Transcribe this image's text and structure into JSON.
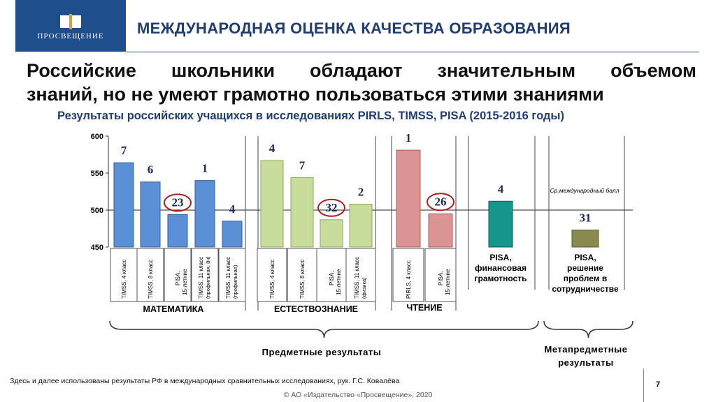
{
  "header": {
    "logo_text": "ПРОСВЕЩЕНИЕ",
    "title": "МЕЖДУНАРОДНАЯ ОЦЕНКА КАЧЕСТВА ОБРАЗОВАНИЯ"
  },
  "headline": {
    "line1_words": [
      "Российские",
      "школьники",
      "обладают",
      "значительным",
      "объемом"
    ],
    "line2": "знаний, но не умеют грамотно пользоваться этими знаниями"
  },
  "subtitle": "Результаты российских учащихся в исследованиях PIRLS, TIMSS, PISA (2015-2016 годы)",
  "chart_data": {
    "type": "bar",
    "ylim": [
      450,
      600
    ],
    "yticks": [
      450,
      500,
      550,
      600
    ],
    "reference_line": {
      "value": 500,
      "label": "Ср.международный балл"
    },
    "groups": [
      {
        "label": "МАТЕМАТИКА",
        "color": "#5b8fd6",
        "stroke": "#2f5f9e",
        "bars": [
          {
            "category": "TIMSS, 4 класс",
            "value": 564,
            "rank": "7",
            "circled": false
          },
          {
            "category": "TIMSS, 8 класс",
            "value": 538,
            "rank": "6",
            "circled": false
          },
          {
            "category": "PISA, 15-летние",
            "value": 494,
            "rank": "23",
            "circled": true
          },
          {
            "category": "TIMSS, 11 класс (профильная, 8ч)",
            "value": 540,
            "rank": "1",
            "circled": false
          },
          {
            "category": "TIMSS, 11 класс (профильная)",
            "value": 485,
            "rank": "4",
            "circled": false
          }
        ]
      },
      {
        "label": "ЕСТЕСТВОЗНАНИЕ",
        "color": "#c8dc9c",
        "stroke": "#8ea85c",
        "bars": [
          {
            "category": "TIMSS, 4 класс",
            "value": 567,
            "rank": "4",
            "circled": false
          },
          {
            "category": "TIMSS, 8 класс",
            "value": 544,
            "rank": "7",
            "circled": false
          },
          {
            "category": "PISA, 15-летние",
            "value": 487,
            "rank": "32",
            "circled": true
          },
          {
            "category": "TIMSS, 11 класс (физика)",
            "value": 508,
            "rank": "2",
            "circled": false
          }
        ]
      },
      {
        "label": "ЧТЕНИЕ",
        "color": "#da9494",
        "stroke": "#b05a5a",
        "bars": [
          {
            "category": "PIRLS, 4 класс",
            "value": 581,
            "rank": "1",
            "circled": false
          },
          {
            "category": "PISA, 15-летние",
            "value": 495,
            "rank": "26",
            "circled": true
          }
        ]
      },
      {
        "label": "PISA, финансовая грамотность",
        "color": "#16958a",
        "stroke": "#0b5e57",
        "bars": [
          {
            "category": "PISA, финансовая грамотность",
            "value": 512,
            "rank": "4",
            "circled": false
          }
        ]
      },
      {
        "label": "PISA, решение проблем в сотрудничестве",
        "color": "#8a8a4e",
        "stroke": "#5e5e30",
        "bars": [
          {
            "category": "PISA, решение проблем в сотрудничестве",
            "value": 473,
            "rank": "31",
            "circled": false
          }
        ]
      }
    ],
    "brace_labels": {
      "subject": "Предметные результаты",
      "meta_line1": "Метапредметные",
      "meta_line2": "результаты"
    }
  },
  "footnote": "Здесь и далее использованы результаты РФ в международных сравнительных исследованиях, рук. Г.С. Ковалёва",
  "page_number": "7",
  "copyright": "© АО «Издательство «Просвещение», 2020"
}
